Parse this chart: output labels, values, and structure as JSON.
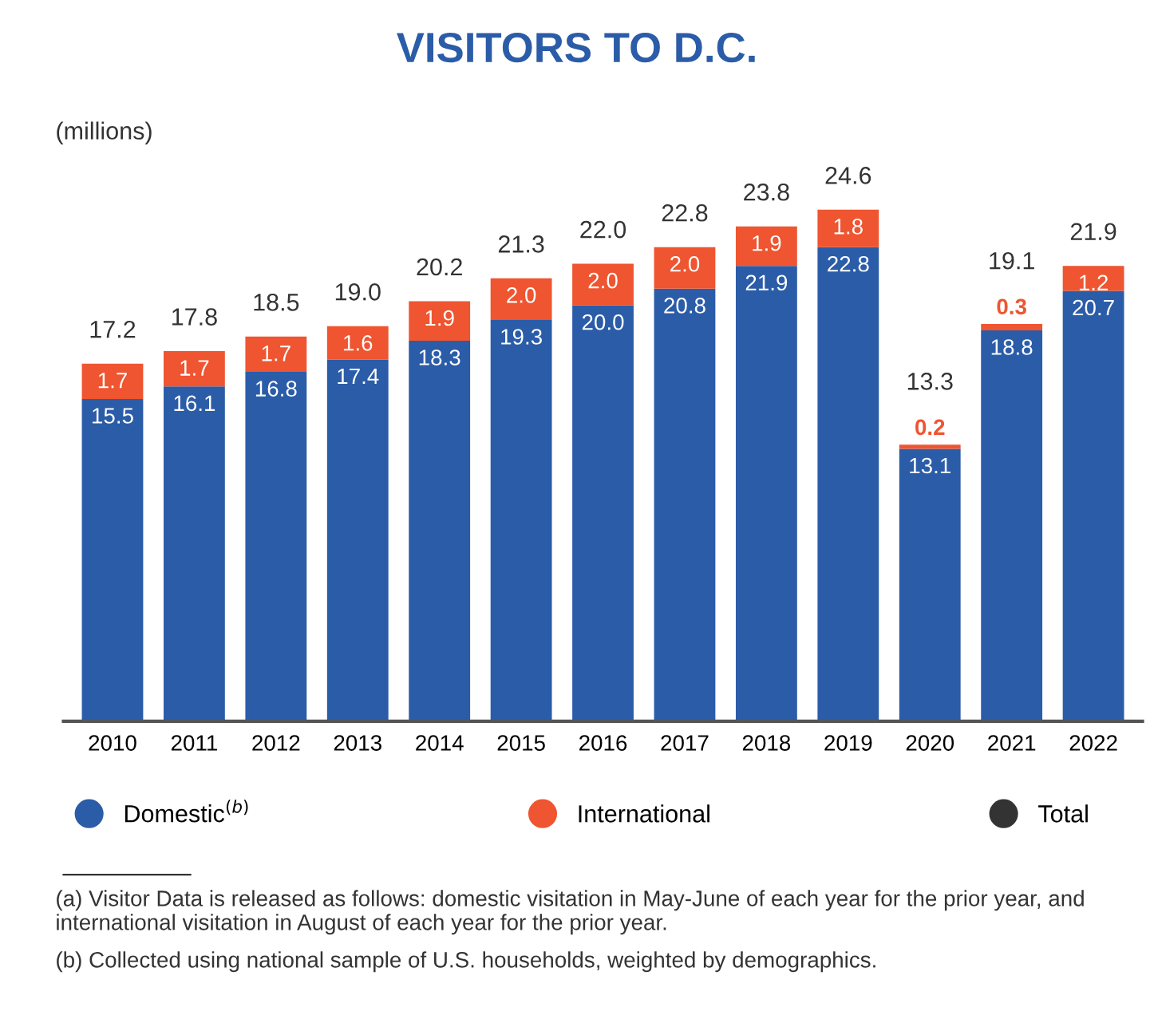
{
  "chart_data": {
    "type": "bar",
    "title": "VISITORS TO D.C.",
    "ylabel": "(millions)",
    "categories": [
      "2010",
      "2011",
      "2012",
      "2013",
      "2014",
      "2015",
      "2016",
      "2017",
      "2018",
      "2019",
      "2020",
      "2021",
      "2022"
    ],
    "stacked": true,
    "legend": "bottom",
    "grid": false,
    "series": [
      {
        "name": "Domestic$^{(b)}$",
        "color": "#2b5ca8",
        "values": [
          15.5,
          16.1,
          16.8,
          17.4,
          18.3,
          19.3,
          20.0,
          20.8,
          21.9,
          22.8,
          13.1,
          18.8,
          20.7
        ],
        "value_labels": [
          "15.5",
          "16.1",
          "16.8",
          "17.4",
          "18.3",
          "19.3",
          "20.0",
          "20.8",
          "21.9",
          "22.8",
          "13.1",
          "18.8",
          "20.7"
        ]
      },
      {
        "name": "International",
        "color": "#ee5530",
        "values": [
          1.7,
          1.7,
          1.7,
          1.6,
          1.9,
          2.0,
          2.0,
          2.0,
          1.9,
          1.8,
          0.2,
          0.3,
          1.2
        ],
        "value_labels": [
          "1.7",
          "1.7",
          "1.7",
          "1.6",
          "1.9",
          "2.0",
          "2.0",
          "2.0",
          "1.9",
          "1.8",
          "0.2",
          "0.3",
          "1.2"
        ]
      },
      {
        "name": "Total",
        "color": "#333333",
        "values": [
          null,
          null,
          null,
          null,
          null,
          null,
          null,
          null,
          null,
          null,
          null,
          null,
          null
        ]
      }
    ],
    "totals": [
      "17.2",
      "17.8",
      "18.5",
      "19.0",
      "20.2",
      "21.3",
      "22.0",
      "22.8",
      "23.8",
      "24.6",
      "13.3",
      "19.1",
      "21.9"
    ],
    "annotations": [
      "(a) Visitor Data is released as follows: domestic visitation in May-June of each year for the prior year, and international visitation in August of each year for the prior year.",
      "(b) Collected using national sample of U.S. households, weighted by demographics."
    ]
  }
}
